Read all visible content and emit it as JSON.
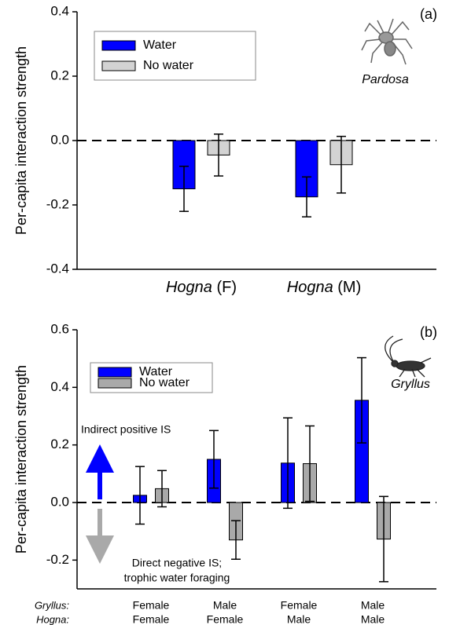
{
  "chart_data": [
    {
      "type": "bar",
      "panel_label": "(a)",
      "ylabel": "Per-capita interaction strength",
      "categories": [
        "Hogna (F)",
        "Hogna (M)"
      ],
      "series": [
        {
          "name": "Water",
          "color": "#0000ff",
          "values": [
            -0.15,
            -0.175
          ],
          "errors": [
            0.07,
            0.062
          ]
        },
        {
          "name": "No water",
          "color": "#d3d3d3",
          "values": [
            -0.045,
            -0.075
          ],
          "errors": [
            0.065,
            0.088
          ]
        }
      ],
      "ylim": [
        -0.4,
        0.4
      ],
      "yticks": [
        -0.4,
        -0.2,
        {
          "value": 0,
          "label": "0.0"
        },
        0.2,
        0.4
      ],
      "legend": "upper left",
      "annotations": [
        "Pardosa"
      ]
    },
    {
      "type": "bar",
      "panel_label": "(b)",
      "ylabel": "Per-capita interaction strength",
      "x_label_rows": [
        {
          "label": "Gryllus:",
          "values": [
            "Female",
            "Male",
            "Female",
            "Male"
          ]
        },
        {
          "label": "Hogna:",
          "values": [
            "Female",
            "Female",
            "Male",
            "Male"
          ]
        }
      ],
      "series": [
        {
          "name": "Water",
          "color": "#0000ff",
          "values": [
            0.025,
            0.15,
            0.137,
            0.355
          ],
          "errors": [
            0.1,
            0.1,
            0.157,
            0.148
          ]
        },
        {
          "name": "No water",
          "color": "#a9a9a9",
          "values": [
            0.048,
            -0.13,
            0.135,
            -0.127
          ],
          "errors": [
            0.063,
            0.067,
            0.131,
            0.148
          ]
        }
      ],
      "ylim": [
        -0.3,
        0.6
      ],
      "yticks": [
        -0.2,
        {
          "value": 0,
          "label": "0.0"
        },
        0.2,
        0.4,
        0.6
      ],
      "legend": "upper left",
      "annotations": [
        "Gryllus",
        "Indirect positive IS",
        "Direct negative IS;",
        "trophic water foraging"
      ]
    }
  ]
}
